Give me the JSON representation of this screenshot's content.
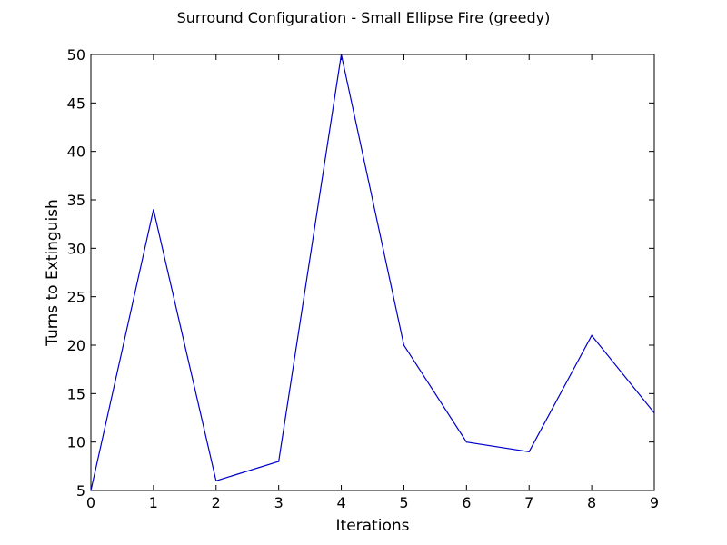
{
  "chart_data": {
    "type": "line",
    "title": "Surround Configuration - Small Ellipse Fire (greedy)",
    "xlabel": "Iterations",
    "ylabel": "Turns to Extinguish",
    "xlim": [
      0,
      9
    ],
    "ylim": [
      5,
      50
    ],
    "xticks": [
      0,
      1,
      2,
      3,
      4,
      5,
      6,
      7,
      8,
      9
    ],
    "yticks": [
      5,
      10,
      15,
      20,
      25,
      30,
      35,
      40,
      45,
      50
    ],
    "grid": false,
    "series": [
      {
        "color": "#0000cc",
        "x": [
          0,
          1,
          2,
          3,
          4,
          5,
          6,
          7,
          8,
          9
        ],
        "y": [
          5,
          34,
          6,
          8,
          50,
          20,
          10,
          9,
          21,
          13
        ]
      }
    ]
  }
}
